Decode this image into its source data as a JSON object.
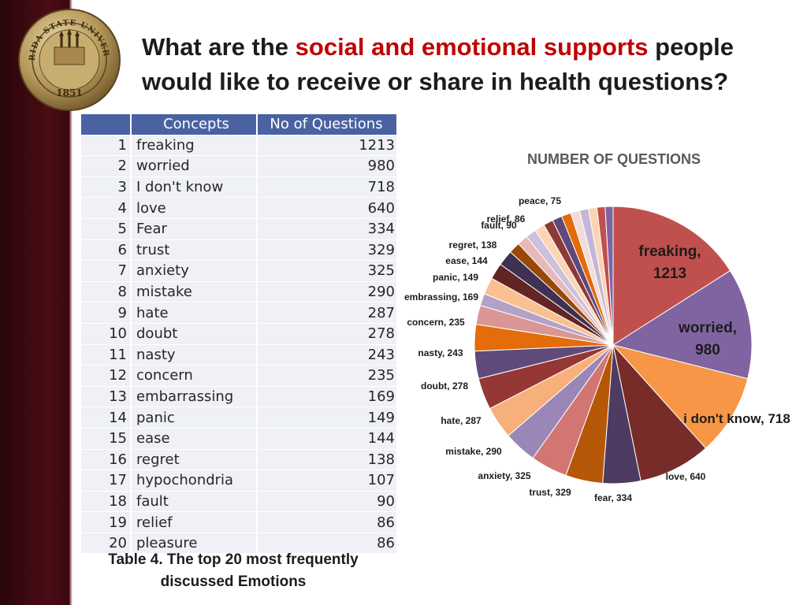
{
  "slide": {
    "title_part1": "What are the ",
    "title_highlight": "social and emotional supports",
    "title_part2": " people would like to receive or share in health questions?",
    "seal": {
      "text_top": "FLORIDA STATE UNIVERSITY",
      "year": "1851",
      "panel_words": [
        "VIRTUE",
        "TRUTH",
        "BEAUTY"
      ]
    },
    "colors": {
      "highlight": "#c00000",
      "sidebar": "#3a0810",
      "table_header": "#4a62a2"
    }
  },
  "table": {
    "headers": [
      "",
      "Concepts",
      "No of Questions"
    ],
    "rows": [
      {
        "rank": "1",
        "concept": "freaking",
        "count": "1213"
      },
      {
        "rank": "2",
        "concept": "worried",
        "count": "980"
      },
      {
        "rank": "3",
        "concept": "I don't know",
        "count": "718"
      },
      {
        "rank": "4",
        "concept": "love",
        "count": "640"
      },
      {
        "rank": "5",
        "concept": "Fear",
        "count": "334"
      },
      {
        "rank": "6",
        "concept": "trust",
        "count": "329"
      },
      {
        "rank": "7",
        "concept": "anxiety",
        "count": "325"
      },
      {
        "rank": "8",
        "concept": "mistake",
        "count": "290"
      },
      {
        "rank": "9",
        "concept": "hate",
        "count": "287"
      },
      {
        "rank": "10",
        "concept": "doubt",
        "count": "278"
      },
      {
        "rank": "11",
        "concept": "nasty",
        "count": "243"
      },
      {
        "rank": "12",
        "concept": "concern",
        "count": "235"
      },
      {
        "rank": "13",
        "concept": "embarrassing",
        "count": "169"
      },
      {
        "rank": "14",
        "concept": "panic",
        "count": "149"
      },
      {
        "rank": "15",
        "concept": "ease",
        "count": "144"
      },
      {
        "rank": "16",
        "concept": "regret",
        "count": "138"
      },
      {
        "rank": "17",
        "concept": "hypochondria",
        "count": "107"
      },
      {
        "rank": "18",
        "concept": "fault",
        "count": "90"
      },
      {
        "rank": "19",
        "concept": "relief",
        "count": "86"
      },
      {
        "rank": "20",
        "concept": "pleasure",
        "count": "86"
      }
    ],
    "caption_line1": "Table 4. The top 20 most frequently",
    "caption_line2": "discussed Emotions"
  },
  "chart_data": {
    "type": "pie",
    "title": "NUMBER OF QUESTIONS",
    "slices": [
      {
        "label": "freaking, 1213",
        "value": 1213,
        "color": "#c0504d"
      },
      {
        "label": "worried, 980",
        "value": 980,
        "color": "#8064a2"
      },
      {
        "label": "i don't know, 718",
        "value": 718,
        "color": "#f79646"
      },
      {
        "label": "love, 640",
        "value": 640,
        "color": "#772c2a"
      },
      {
        "label": "fear, 334",
        "value": 334,
        "color": "#4d3b62"
      },
      {
        "label": "trust, 329",
        "value": 329,
        "color": "#b65708"
      },
      {
        "label": "anxiety, 325",
        "value": 325,
        "color": "#d27674"
      },
      {
        "label": "mistake, 290",
        "value": 290,
        "color": "#9b86b8"
      },
      {
        "label": "hate, 287",
        "value": 287,
        "color": "#f8b07a"
      },
      {
        "label": "doubt, 278",
        "value": 278,
        "color": "#953735"
      },
      {
        "label": "nasty, 243",
        "value": 243,
        "color": "#604a7b"
      },
      {
        "label": "concern, 235",
        "value": 235,
        "color": "#e46c0a"
      },
      {
        "label": "embrassing, 169",
        "value": 169,
        "color": "#d99694"
      },
      {
        "label": "",
        "value": 107,
        "color": "#b3a2c7"
      },
      {
        "label": "panic, 149",
        "value": 149,
        "color": "#fac090"
      },
      {
        "label": "ease, 144",
        "value": 144,
        "color": "#632523"
      },
      {
        "label": "regret, 138",
        "value": 138,
        "color": "#3f3151"
      },
      {
        "label": "",
        "value": 100,
        "color": "#984807"
      },
      {
        "label": "",
        "value": 95,
        "color": "#e6b9b8"
      },
      {
        "label": "",
        "value": 92,
        "color": "#ccc1da"
      },
      {
        "label": "fault, 90",
        "value": 90,
        "color": "#fcd5b5"
      },
      {
        "label": "relief, 86",
        "value": 86,
        "color": "#8b3a38"
      },
      {
        "label": "",
        "value": 86,
        "color": "#5f497a"
      },
      {
        "label": "",
        "value": 84,
        "color": "#e26b0a"
      },
      {
        "label": "",
        "value": 80,
        "color": "#f2dcdb"
      },
      {
        "label": "",
        "value": 78,
        "color": "#c3b6d6"
      },
      {
        "label": "peace, 75",
        "value": 75,
        "color": "#fbd4b4"
      },
      {
        "label": "",
        "value": 72,
        "color": "#c0504d"
      },
      {
        "label": "",
        "value": 70,
        "color": "#8064a2"
      }
    ]
  }
}
